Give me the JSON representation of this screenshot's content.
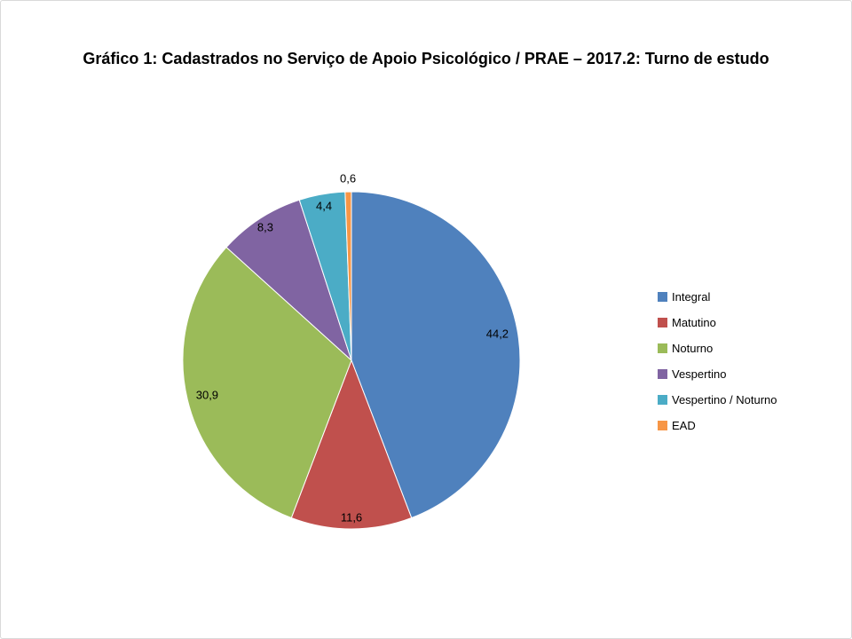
{
  "chart_data": {
    "type": "pie",
    "title": "Gráfico 1: Cadastrados no Serviço de Apoio Psicológico / PRAE – 2017.2: Turno de estudo",
    "categories": [
      "Integral",
      "Matutino",
      "Noturno",
      "Vespertino",
      "Vespertino / Noturno",
      "EAD"
    ],
    "values": [
      44.2,
      11.6,
      30.9,
      8.3,
      4.4,
      0.6
    ],
    "value_labels": [
      "44,2",
      "11,6",
      "30,9",
      "8,3",
      "4,4",
      "0,6"
    ],
    "colors": [
      "#4F81BD",
      "#C0504D",
      "#9BBB59",
      "#8064A2",
      "#4BACC6",
      "#F79646"
    ],
    "legend_position": "right",
    "start_angle_deg": 0,
    "direction": "clockwise",
    "unit": "percent"
  }
}
